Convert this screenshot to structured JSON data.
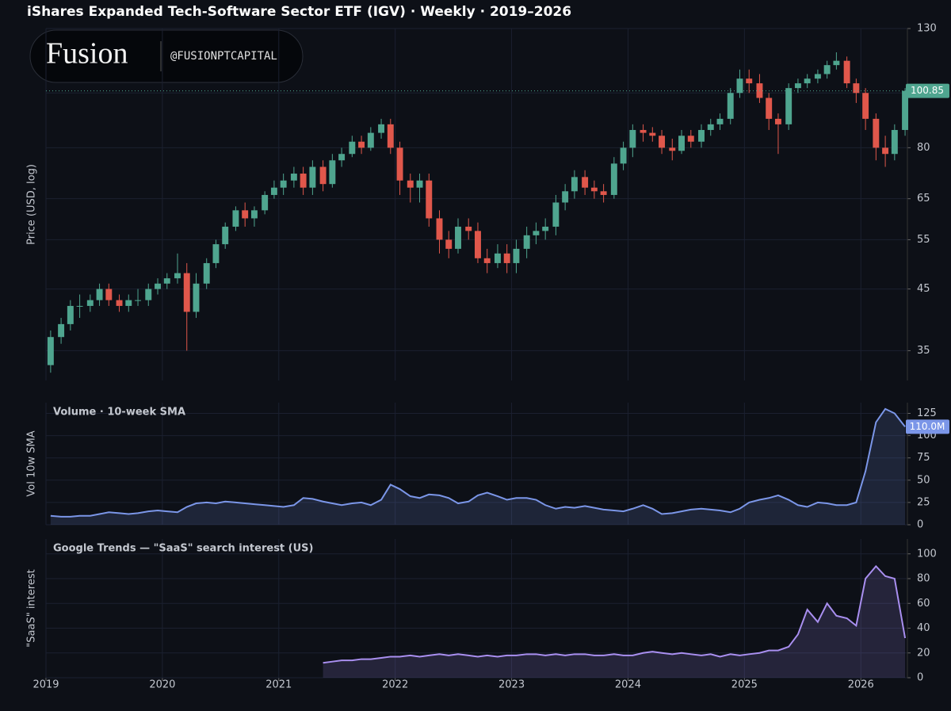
{
  "title": "iShares Expanded Tech-Software Sector ETF (IGV) · Weekly · 2019–2026",
  "watermark": {
    "brand": "Fusion",
    "handle": "@FUSIONPTCAPITAL"
  },
  "chart_data": [
    {
      "type": "candlestick",
      "y_label": "Price (USD, log)",
      "log_scale": true,
      "grid": true,
      "up_color": "#4fa58f",
      "down_color": "#e0574b",
      "x": [
        2019.04,
        2019.13,
        2019.21,
        2019.29,
        2019.38,
        2019.46,
        2019.54,
        2019.63,
        2019.71,
        2019.79,
        2019.88,
        2019.96,
        2020.04,
        2020.13,
        2020.21,
        2020.29,
        2020.38,
        2020.46,
        2020.54,
        2020.63,
        2020.71,
        2020.79,
        2020.88,
        2020.96,
        2021.04,
        2021.13,
        2021.21,
        2021.29,
        2021.38,
        2021.46,
        2021.54,
        2021.63,
        2021.71,
        2021.79,
        2021.88,
        2021.96,
        2022.04,
        2022.13,
        2022.21,
        2022.29,
        2022.38,
        2022.46,
        2022.54,
        2022.63,
        2022.71,
        2022.79,
        2022.88,
        2022.96,
        2023.04,
        2023.13,
        2023.21,
        2023.29,
        2023.38,
        2023.46,
        2023.54,
        2023.63,
        2023.71,
        2023.79,
        2023.88,
        2023.96,
        2024.04,
        2024.13,
        2024.21,
        2024.29,
        2024.38,
        2024.46,
        2024.54,
        2024.63,
        2024.71,
        2024.79,
        2024.88,
        2024.96,
        2025.04,
        2025.13,
        2025.21,
        2025.29,
        2025.38,
        2025.46,
        2025.54,
        2025.63,
        2025.71,
        2025.79,
        2025.88,
        2025.96,
        2026.04,
        2026.13,
        2026.21,
        2026.29,
        2026.38
      ],
      "open": [
        33,
        37,
        39,
        42,
        42,
        43,
        45,
        43,
        42,
        43,
        43,
        45,
        46,
        47,
        48,
        41,
        46,
        50,
        54,
        58,
        62,
        60,
        62,
        66,
        68,
        70,
        72,
        68,
        74,
        69,
        76,
        78,
        82,
        80,
        85,
        88,
        80,
        70,
        68,
        70,
        60,
        55,
        53,
        58,
        57,
        51,
        50,
        52,
        50,
        53,
        56,
        57,
        58,
        64,
        67,
        71,
        68,
        67,
        66,
        75,
        80,
        86,
        85,
        84,
        80,
        79,
        84,
        82,
        86,
        88,
        90,
        100,
        106,
        104,
        98,
        90,
        88,
        102,
        104,
        106,
        108,
        112,
        114,
        104,
        100,
        90,
        80,
        78,
        86
      ],
      "high": [
        38,
        40,
        43,
        44,
        44,
        46,
        46,
        44,
        44,
        45,
        46,
        47,
        48,
        52,
        50,
        48,
        51,
        55,
        59,
        63,
        64,
        63,
        67,
        70,
        72,
        74,
        74,
        76,
        76,
        78,
        80,
        84,
        84,
        87,
        90,
        90,
        82,
        72,
        72,
        72,
        62,
        57,
        60,
        60,
        59,
        53,
        54,
        54,
        55,
        58,
        59,
        60,
        66,
        69,
        73,
        73,
        70,
        69,
        77,
        82,
        88,
        88,
        87,
        86,
        83,
        86,
        86,
        88,
        90,
        92,
        102,
        110,
        110,
        108,
        100,
        92,
        104,
        106,
        108,
        110,
        114,
        118,
        116,
        106,
        102,
        92,
        84,
        88,
        102
      ],
      "low": [
        32,
        36,
        38,
        40,
        41,
        42,
        42,
        41,
        41,
        42,
        42,
        44,
        45,
        46,
        35,
        40,
        45,
        49,
        53,
        57,
        58,
        58,
        61,
        65,
        66,
        68,
        66,
        66,
        67,
        68,
        74,
        77,
        78,
        79,
        83,
        78,
        66,
        64,
        64,
        58,
        52,
        51,
        52,
        55,
        50,
        48,
        49,
        48,
        48,
        51,
        54,
        55,
        56,
        62,
        65,
        66,
        65,
        64,
        65,
        73,
        77,
        82,
        82,
        78,
        76,
        78,
        80,
        80,
        84,
        86,
        88,
        98,
        100,
        96,
        86,
        78,
        86,
        100,
        102,
        104,
        106,
        110,
        102,
        96,
        86,
        76,
        74,
        76,
        84
      ],
      "close": [
        37,
        39,
        42,
        42,
        43,
        45,
        43,
        42,
        43,
        43,
        45,
        46,
        47,
        48,
        41,
        46,
        50,
        54,
        58,
        62,
        60,
        62,
        66,
        68,
        70,
        72,
        68,
        74,
        69,
        76,
        78,
        82,
        80,
        85,
        88,
        80,
        70,
        68,
        70,
        60,
        55,
        53,
        58,
        57,
        51,
        50,
        52,
        50,
        53,
        56,
        57,
        58,
        64,
        67,
        71,
        68,
        67,
        66,
        75,
        80,
        86,
        85,
        84,
        80,
        79,
        84,
        82,
        86,
        88,
        90,
        100,
        106,
        104,
        98,
        90,
        88,
        102,
        104,
        106,
        108,
        112,
        114,
        104,
        100,
        90,
        80,
        78,
        86,
        100.85
      ],
      "xlim": [
        2019,
        2026.4
      ],
      "xticks": [
        2019,
        2020,
        2021,
        2022,
        2023,
        2024,
        2025,
        2026
      ],
      "ylim": [
        31,
        130
      ],
      "yticks": [
        35,
        45,
        55,
        65,
        80,
        100,
        130
      ]
    },
    {
      "type": "area",
      "title": "Volume · 10-week SMA",
      "y_label": "Vol 10w SMA",
      "color": "#7b96e8",
      "grid": true,
      "x": [
        2019.04,
        2019.13,
        2019.21,
        2019.29,
        2019.38,
        2019.46,
        2019.54,
        2019.63,
        2019.71,
        2019.79,
        2019.88,
        2019.96,
        2020.04,
        2020.13,
        2020.21,
        2020.29,
        2020.38,
        2020.46,
        2020.54,
        2020.63,
        2020.71,
        2020.79,
        2020.88,
        2020.96,
        2021.04,
        2021.13,
        2021.21,
        2021.29,
        2021.38,
        2021.46,
        2021.54,
        2021.63,
        2021.71,
        2021.79,
        2021.88,
        2021.96,
        2022.04,
        2022.13,
        2022.21,
        2022.29,
        2022.38,
        2022.46,
        2022.54,
        2022.63,
        2022.71,
        2022.79,
        2022.88,
        2022.96,
        2023.04,
        2023.13,
        2023.21,
        2023.29,
        2023.38,
        2023.46,
        2023.54,
        2023.63,
        2023.71,
        2023.79,
        2023.88,
        2023.96,
        2024.04,
        2024.13,
        2024.21,
        2024.29,
        2024.38,
        2024.46,
        2024.54,
        2024.63,
        2024.71,
        2024.79,
        2024.88,
        2024.96,
        2025.04,
        2025.13,
        2025.21,
        2025.29,
        2025.38,
        2025.46,
        2025.54,
        2025.63,
        2025.71,
        2025.79,
        2025.88,
        2025.96,
        2026.04,
        2026.13,
        2026.21,
        2026.29,
        2026.38
      ],
      "values": [
        10,
        9,
        9,
        10,
        10,
        12,
        14,
        13,
        12,
        13,
        15,
        16,
        15,
        14,
        20,
        24,
        25,
        24,
        26,
        25,
        24,
        23,
        22,
        21,
        20,
        22,
        30,
        29,
        26,
        24,
        22,
        24,
        25,
        22,
        28,
        45,
        40,
        32,
        30,
        34,
        33,
        30,
        24,
        26,
        33,
        36,
        32,
        28,
        30,
        30,
        28,
        22,
        18,
        20,
        19,
        21,
        19,
        17,
        16,
        15,
        18,
        22,
        18,
        12,
        13,
        15,
        17,
        18,
        17,
        16,
        14,
        18,
        25,
        28,
        30,
        33,
        28,
        22,
        20,
        25,
        24,
        22,
        22,
        25,
        60,
        115,
        130,
        125,
        110
      ],
      "last_value_label": "110.0M",
      "xlim": [
        2019,
        2026.4
      ],
      "xticks": [
        2019,
        2020,
        2021,
        2022,
        2023,
        2024,
        2025,
        2026
      ],
      "ylim": [
        0,
        137
      ],
      "yticks": [
        0,
        25,
        50,
        75,
        100,
        125
      ]
    },
    {
      "type": "area",
      "title": "Google Trends — \"SaaS\" search interest (US)",
      "y_label": "\"SaaS\" interest",
      "color": "#a98ff0",
      "grid": true,
      "x": [
        2021.38,
        2021.46,
        2021.54,
        2021.63,
        2021.71,
        2021.79,
        2021.88,
        2021.96,
        2022.04,
        2022.13,
        2022.21,
        2022.29,
        2022.38,
        2022.46,
        2022.54,
        2022.63,
        2022.71,
        2022.79,
        2022.88,
        2022.96,
        2023.04,
        2023.13,
        2023.21,
        2023.29,
        2023.38,
        2023.46,
        2023.54,
        2023.63,
        2023.71,
        2023.79,
        2023.88,
        2023.96,
        2024.04,
        2024.13,
        2024.21,
        2024.29,
        2024.38,
        2024.46,
        2024.54,
        2024.63,
        2024.71,
        2024.79,
        2024.88,
        2024.96,
        2025.04,
        2025.13,
        2025.21,
        2025.29,
        2025.38,
        2025.46,
        2025.54,
        2025.63,
        2025.71,
        2025.79,
        2025.88,
        2025.96,
        2026.04,
        2026.13,
        2026.21,
        2026.29,
        2026.38
      ],
      "values": [
        12,
        13,
        14,
        14,
        15,
        15,
        16,
        17,
        17,
        18,
        17,
        18,
        19,
        18,
        19,
        18,
        17,
        18,
        17,
        18,
        18,
        19,
        19,
        18,
        19,
        18,
        19,
        19,
        18,
        18,
        19,
        18,
        18,
        20,
        21,
        20,
        19,
        20,
        19,
        18,
        19,
        17,
        19,
        18,
        19,
        20,
        22,
        22,
        25,
        35,
        55,
        45,
        60,
        50,
        48,
        42,
        80,
        90,
        82,
        80,
        32
      ],
      "xlim": [
        2019,
        2026.4
      ],
      "xticks": [
        2019,
        2020,
        2021,
        2022,
        2023,
        2024,
        2025,
        2026
      ],
      "ylim": [
        0,
        112
      ],
      "yticks": [
        0,
        20,
        40,
        60,
        80,
        100
      ]
    }
  ]
}
